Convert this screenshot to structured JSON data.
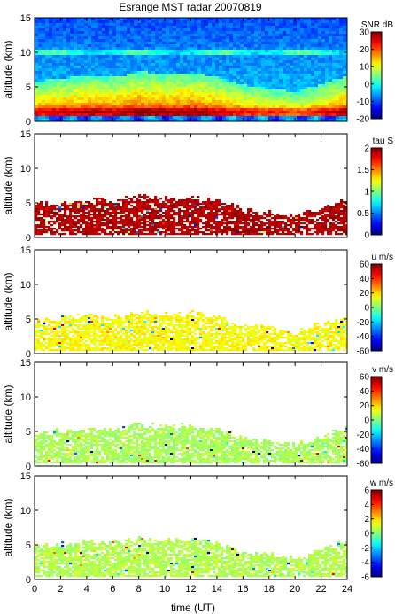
{
  "chart_data": {
    "type": "heatmap",
    "title": "Esrange MST radar 20070819",
    "xlabel": "time (UT)",
    "xlim": [
      0,
      24
    ],
    "xticks": [
      0,
      2,
      4,
      6,
      8,
      10,
      12,
      14,
      16,
      18,
      20,
      22,
      24
    ],
    "panels": [
      {
        "ylabel": "altitude (km)",
        "ylim": [
          0,
          15
        ],
        "yticks": [
          0,
          5,
          10,
          15
        ],
        "colorbar_label": "SNR dB",
        "clim": [
          -20,
          30
        ],
        "cticks": [
          -20,
          -10,
          0,
          10,
          20,
          30
        ],
        "fill": "full"
      },
      {
        "ylabel": "altitude (km)",
        "ylim": [
          0,
          15
        ],
        "yticks": [
          0,
          5,
          10,
          15
        ],
        "colorbar_label": "tau S",
        "clim": [
          0,
          2
        ],
        "cticks": [
          0,
          0.5,
          1,
          1.5,
          2
        ],
        "fill": "echo",
        "typical_value": 1.9
      },
      {
        "ylabel": "altitude (km)",
        "ylim": [
          0,
          15
        ],
        "yticks": [
          0,
          5,
          10,
          15
        ],
        "colorbar_label": "u m/s",
        "clim": [
          -60,
          60
        ],
        "cticks": [
          -60,
          -40,
          -20,
          0,
          20,
          40,
          60
        ],
        "fill": "echo",
        "typical_value": 15
      },
      {
        "ylabel": "altitude (km)",
        "ylim": [
          0,
          15
        ],
        "yticks": [
          0,
          5,
          10,
          15
        ],
        "colorbar_label": "v m/s",
        "clim": [
          -60,
          60
        ],
        "cticks": [
          -60,
          -40,
          -20,
          0,
          20,
          40,
          60
        ],
        "fill": "echo",
        "typical_value": 5
      },
      {
        "ylabel": "altitude (km)",
        "ylim": [
          0,
          15
        ],
        "yticks": [
          0,
          5,
          10,
          15
        ],
        "colorbar_label": "w m/s",
        "clim": [
          -6,
          6
        ],
        "cticks": [
          -6,
          -4,
          -2,
          0,
          2,
          4,
          6
        ],
        "fill": "echo",
        "typical_value": 0.6
      }
    ],
    "echo_top_km": [
      {
        "t": 0,
        "h": 4.8
      },
      {
        "t": 2,
        "h": 5.2
      },
      {
        "t": 4,
        "h": 5.6
      },
      {
        "t": 6,
        "h": 5.4
      },
      {
        "t": 8,
        "h": 6.2
      },
      {
        "t": 10,
        "h": 5.8
      },
      {
        "t": 12,
        "h": 6.0
      },
      {
        "t": 14,
        "h": 5.3
      },
      {
        "t": 16,
        "h": 4.2
      },
      {
        "t": 18,
        "h": 3.7
      },
      {
        "t": 20,
        "h": 3.2
      },
      {
        "t": 22,
        "h": 4.5
      },
      {
        "t": 24,
        "h": 5.6
      }
    ]
  }
}
